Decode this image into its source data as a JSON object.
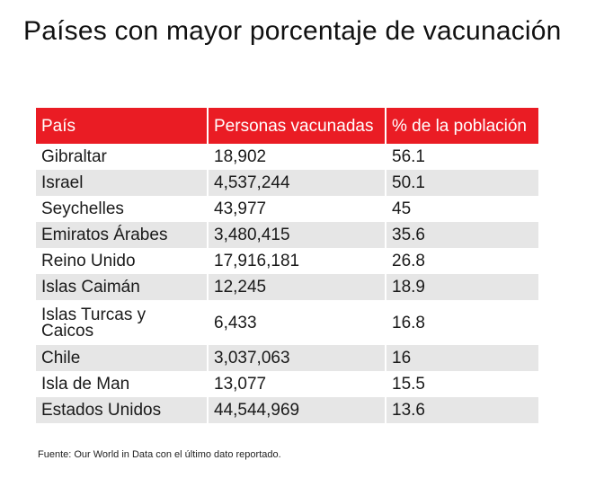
{
  "title": "Países con mayor porcentaje de vacunación",
  "source": "Fuente: Our World in Data con el último dato reportado.",
  "colors": {
    "header_bg": "#ea1c24",
    "header_text": "#ffffff",
    "row_alt": "#e6e6e6"
  },
  "chart_data": {
    "type": "table",
    "title": "Países con mayor porcentaje de vacunación",
    "columns": [
      "País",
      "Personas vacunadas",
      "% de la población"
    ],
    "rows": [
      [
        "Gibraltar",
        "18,902",
        "56.1"
      ],
      [
        "Israel",
        "4,537,244",
        "50.1"
      ],
      [
        "Seychelles",
        "43,977",
        "45"
      ],
      [
        "Emiratos Árabes",
        "3,480,415",
        "35.6"
      ],
      [
        "Reino Unido",
        "17,916,181",
        "26.8"
      ],
      [
        "Islas Caimán",
        "12,245",
        "18.9"
      ],
      [
        "Islas Turcas y Caicos",
        "6,433",
        "16.8"
      ],
      [
        "Chile",
        "3,037,063",
        "16"
      ],
      [
        "Isla de Man",
        "13,077",
        "15.5"
      ],
      [
        "Estados Unidos",
        "44,544,969",
        "13.6"
      ]
    ],
    "source": "Fuente: Our World in Data con el último dato reportado."
  }
}
